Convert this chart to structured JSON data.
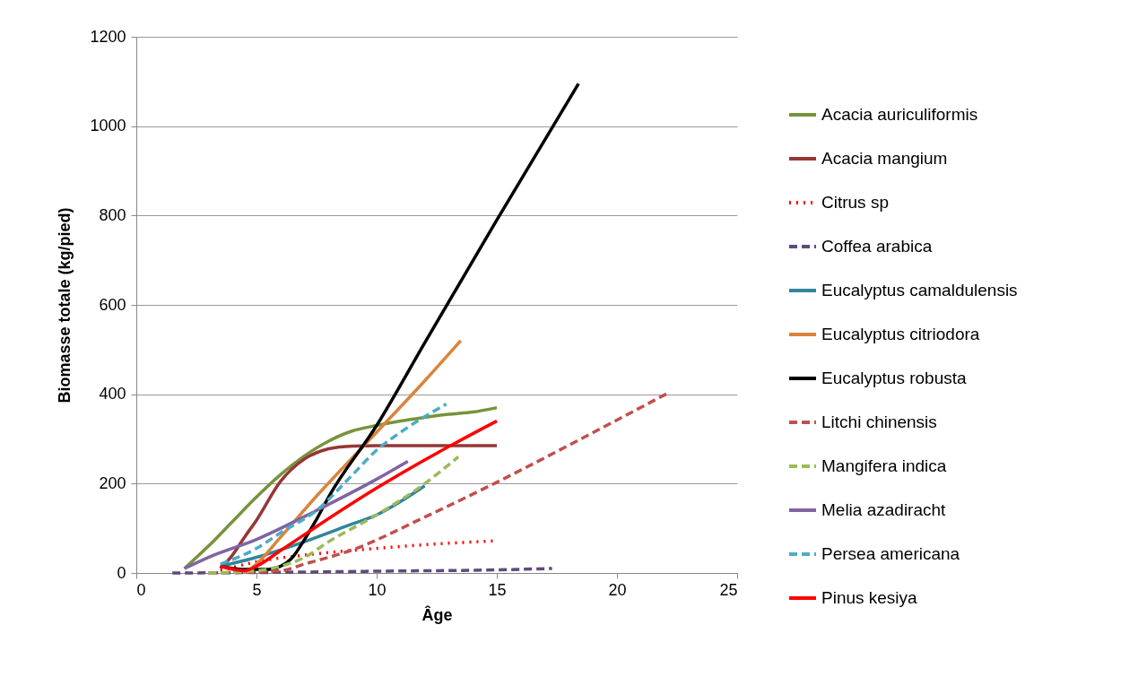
{
  "chart_data": {
    "type": "line",
    "xlabel": "Âge",
    "ylabel": "Biomasse totale (kg/pied)",
    "xlim": [
      0,
      25
    ],
    "xticks": [
      0,
      5,
      10,
      15,
      20,
      25
    ],
    "ylim": [
      0,
      1200
    ],
    "yticks": [
      0,
      200,
      400,
      600,
      800,
      1000,
      1200
    ],
    "grid": "y",
    "legend": "right",
    "marker": "none",
    "series": [
      {
        "name": "Acacia auriculiformis",
        "color": "#77933c",
        "line_style": "solid",
        "x": [
          2,
          3,
          4,
          5,
          6,
          7,
          8,
          9,
          10,
          11,
          12,
          13,
          14,
          15
        ],
        "values": [
          10,
          60,
          115,
          170,
          220,
          262,
          295,
          318,
          330,
          340,
          348,
          355,
          360,
          370
        ]
      },
      {
        "name": "Acacia mangium",
        "color": "#953735",
        "line_style": "solid",
        "x": [
          3.5,
          4,
          4.5,
          5,
          6,
          7,
          8,
          9,
          10,
          12,
          15
        ],
        "values": [
          10,
          40,
          80,
          118,
          205,
          255,
          278,
          284,
          285,
          285,
          285
        ]
      },
      {
        "name": "Citrus sp",
        "color": "#ff0000",
        "line_style": "dotted",
        "x": [
          3.5,
          5,
          7,
          10,
          12.5,
          15
        ],
        "values": [
          5,
          25,
          40,
          55,
          65,
          72
        ]
      },
      {
        "name": "Coffea arabica",
        "color": "#604a7b",
        "line_style": "dashed",
        "x": [
          1.5,
          5,
          10,
          15,
          17.3
        ],
        "values": [
          0,
          1,
          4,
          7,
          10
        ]
      },
      {
        "name": "Eucalyptus camaldulensis",
        "color": "#31859c",
        "line_style": "solid",
        "x": [
          3.5,
          5,
          7,
          9,
          10,
          11,
          12
        ],
        "values": [
          15,
          35,
          70,
          110,
          130,
          160,
          195
        ]
      },
      {
        "name": "Eucalyptus citriodora",
        "color": "#d9853b",
        "line_style": "solid",
        "x": [
          4.5,
          5,
          6,
          7.5,
          10,
          12,
          13.5
        ],
        "values": [
          0,
          20,
          80,
          172,
          315,
          430,
          520
        ]
      },
      {
        "name": "Eucalyptus robusta",
        "color": "#000000",
        "line_style": "solid",
        "x": [
          3.5,
          4.5,
          5.5,
          6,
          6.5,
          7,
          7.5,
          8,
          10,
          12,
          15,
          18.4
        ],
        "values": [
          15,
          8,
          8,
          15,
          35,
          75,
          120,
          170,
          330,
          515,
          790,
          1095
        ]
      },
      {
        "name": "Litchi chinensis",
        "color": "#c0504d",
        "line_style": "dashed",
        "x": [
          3,
          6,
          7,
          9,
          12,
          15,
          18.5,
          22.1
        ],
        "values": [
          0,
          5,
          20,
          52,
          125,
          203,
          300,
          402
        ]
      },
      {
        "name": "Mangifera indica",
        "color": "#9bbb59",
        "line_style": "dashed",
        "x": [
          3,
          5,
          6,
          7,
          8,
          10,
          12,
          13.4
        ],
        "values": [
          0,
          5,
          15,
          35,
          70,
          130,
          200,
          260
        ]
      },
      {
        "name": "Melia azadiracht",
        "color": "#8064a2",
        "line_style": "solid",
        "x": [
          2,
          3,
          5,
          7.5,
          10,
          11.3
        ],
        "values": [
          10,
          35,
          75,
          140,
          210,
          250
        ]
      },
      {
        "name": "Persea americana",
        "color": "#4bacc6",
        "line_style": "dashed",
        "x": [
          3.5,
          5,
          6,
          7.5,
          9,
          10,
          11,
          12.9
        ],
        "values": [
          20,
          55,
          90,
          140,
          220,
          275,
          315,
          378
        ]
      },
      {
        "name": "Pinus kesiya",
        "color": "#ff0000",
        "line_style": "solid",
        "x": [
          3.5,
          4.5,
          5,
          6,
          7.5,
          10,
          12.5,
          15
        ],
        "values": [
          15,
          5,
          15,
          50,
          104,
          190,
          268,
          340
        ]
      }
    ]
  }
}
